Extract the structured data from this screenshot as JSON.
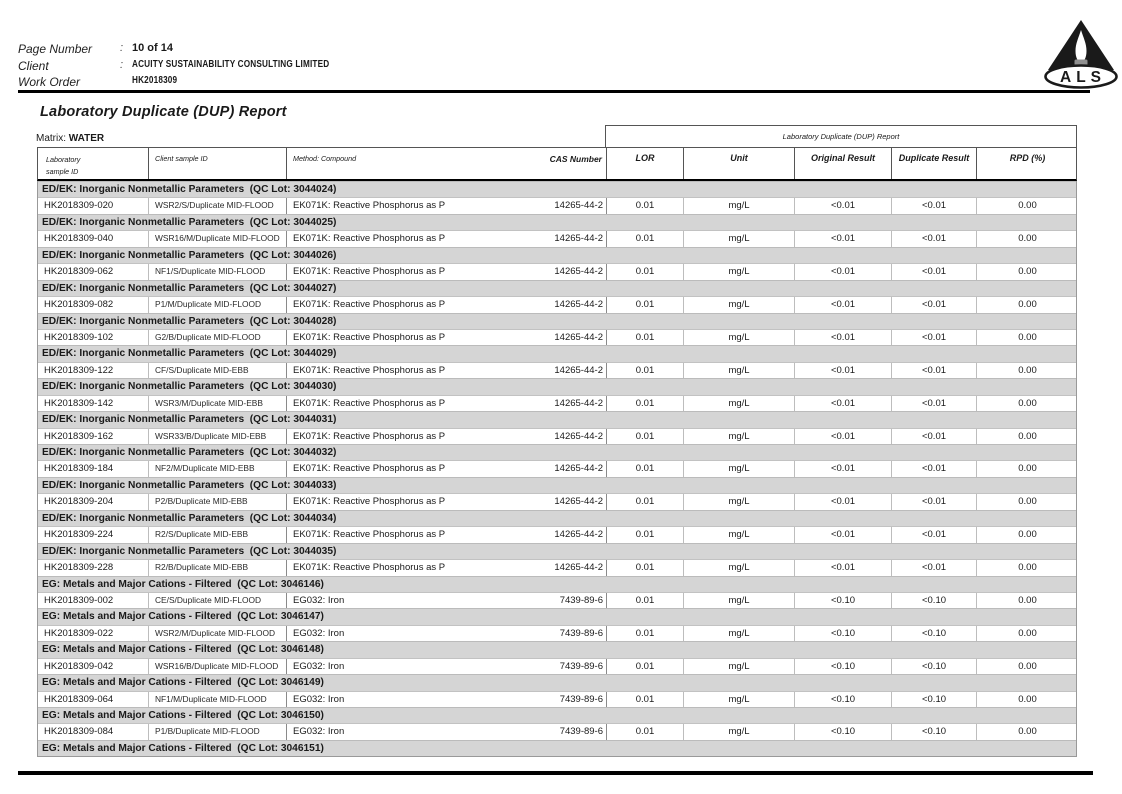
{
  "header": {
    "rows": [
      {
        "label": "Page Number",
        "sep": ":",
        "value": "10 of 14"
      },
      {
        "label": "Client",
        "sep": ":",
        "value": "ACUITY SUSTAINABILITY CONSULTING LIMITED"
      },
      {
        "label": "Work Order",
        "sep": "",
        "value": "HK2018309"
      }
    ]
  },
  "logo": {
    "text": "ALS"
  },
  "title": "Laboratory Duplicate (DUP) Report",
  "matrix": {
    "label": "Matrix:",
    "value": "WATER"
  },
  "table": {
    "group_header": "Laboratory Duplicate (DUP) Report",
    "columns": {
      "laboratory_sample_id_line1": "Laboratory",
      "laboratory_sample_id_line2": "sample ID",
      "client_sample_id": "Client sample ID",
      "method_compound": "Method: Compound",
      "cas_number": "CAS Number",
      "lor": "LOR",
      "unit": "Unit",
      "original_result": "Original Result",
      "duplicate_result": "Duplicate Result",
      "rpd": "RPD (%)"
    },
    "sections": [
      {
        "title": "ED/EK: Inorganic Nonmetallic Parameters  (QC Lot: 3044024)",
        "row": {
          "lab_id": "HK2018309-020",
          "client_id": "WSR2/S/Duplicate MID-FLOOD",
          "method": "EK071K: Reactive Phosphorus as P",
          "cas": "14265-44-2",
          "lor": "0.01",
          "unit": "mg/L",
          "original": "<0.01",
          "duplicate": "<0.01",
          "rpd": "0.00"
        }
      },
      {
        "title": "ED/EK: Inorganic Nonmetallic Parameters  (QC Lot: 3044025)",
        "row": {
          "lab_id": "HK2018309-040",
          "client_id": "WSR16/M/Duplicate MID-FLOOD",
          "method": "EK071K: Reactive Phosphorus as P",
          "cas": "14265-44-2",
          "lor": "0.01",
          "unit": "mg/L",
          "original": "<0.01",
          "duplicate": "<0.01",
          "rpd": "0.00"
        }
      },
      {
        "title": "ED/EK: Inorganic Nonmetallic Parameters  (QC Lot: 3044026)",
        "row": {
          "lab_id": "HK2018309-062",
          "client_id": "NF1/S/Duplicate MID-FLOOD",
          "method": "EK071K: Reactive Phosphorus as P",
          "cas": "14265-44-2",
          "lor": "0.01",
          "unit": "mg/L",
          "original": "<0.01",
          "duplicate": "<0.01",
          "rpd": "0.00"
        }
      },
      {
        "title": "ED/EK: Inorganic Nonmetallic Parameters  (QC Lot: 3044027)",
        "row": {
          "lab_id": "HK2018309-082",
          "client_id": "P1/M/Duplicate MID-FLOOD",
          "method": "EK071K: Reactive Phosphorus as P",
          "cas": "14265-44-2",
          "lor": "0.01",
          "unit": "mg/L",
          "original": "<0.01",
          "duplicate": "<0.01",
          "rpd": "0.00"
        }
      },
      {
        "title": "ED/EK: Inorganic Nonmetallic Parameters  (QC Lot: 3044028)",
        "row": {
          "lab_id": "HK2018309-102",
          "client_id": "G2/B/Duplicate MID-FLOOD",
          "method": "EK071K: Reactive Phosphorus as P",
          "cas": "14265-44-2",
          "lor": "0.01",
          "unit": "mg/L",
          "original": "<0.01",
          "duplicate": "<0.01",
          "rpd": "0.00"
        }
      },
      {
        "title": "ED/EK: Inorganic Nonmetallic Parameters  (QC Lot: 3044029)",
        "row": {
          "lab_id": "HK2018309-122",
          "client_id": "CF/S/Duplicate MID-EBB",
          "method": "EK071K: Reactive Phosphorus as P",
          "cas": "14265-44-2",
          "lor": "0.01",
          "unit": "mg/L",
          "original": "<0.01",
          "duplicate": "<0.01",
          "rpd": "0.00"
        }
      },
      {
        "title": "ED/EK: Inorganic Nonmetallic Parameters  (QC Lot: 3044030)",
        "row": {
          "lab_id": "HK2018309-142",
          "client_id": "WSR3/M/Duplicate MID-EBB",
          "method": "EK071K: Reactive Phosphorus as P",
          "cas": "14265-44-2",
          "lor": "0.01",
          "unit": "mg/L",
          "original": "<0.01",
          "duplicate": "<0.01",
          "rpd": "0.00"
        }
      },
      {
        "title": "ED/EK: Inorganic Nonmetallic Parameters  (QC Lot: 3044031)",
        "row": {
          "lab_id": "HK2018309-162",
          "client_id": "WSR33/B/Duplicate MID-EBB",
          "method": "EK071K: Reactive Phosphorus as P",
          "cas": "14265-44-2",
          "lor": "0.01",
          "unit": "mg/L",
          "original": "<0.01",
          "duplicate": "<0.01",
          "rpd": "0.00"
        }
      },
      {
        "title": "ED/EK: Inorganic Nonmetallic Parameters  (QC Lot: 3044032)",
        "row": {
          "lab_id": "HK2018309-184",
          "client_id": "NF2/M/Duplicate MID-EBB",
          "method": "EK071K: Reactive Phosphorus as P",
          "cas": "14265-44-2",
          "lor": "0.01",
          "unit": "mg/L",
          "original": "<0.01",
          "duplicate": "<0.01",
          "rpd": "0.00"
        }
      },
      {
        "title": "ED/EK: Inorganic Nonmetallic Parameters  (QC Lot: 3044033)",
        "row": {
          "lab_id": "HK2018309-204",
          "client_id": "P2/B/Duplicate MID-EBB",
          "method": "EK071K: Reactive Phosphorus as P",
          "cas": "14265-44-2",
          "lor": "0.01",
          "unit": "mg/L",
          "original": "<0.01",
          "duplicate": "<0.01",
          "rpd": "0.00"
        }
      },
      {
        "title": "ED/EK: Inorganic Nonmetallic Parameters  (QC Lot: 3044034)",
        "row": {
          "lab_id": "HK2018309-224",
          "client_id": "R2/S/Duplicate MID-EBB",
          "method": "EK071K: Reactive Phosphorus as P",
          "cas": "14265-44-2",
          "lor": "0.01",
          "unit": "mg/L",
          "original": "<0.01",
          "duplicate": "<0.01",
          "rpd": "0.00"
        }
      },
      {
        "title": "ED/EK: Inorganic Nonmetallic Parameters  (QC Lot: 3044035)",
        "row": {
          "lab_id": "HK2018309-228",
          "client_id": "R2/B/Duplicate MID-EBB",
          "method": "EK071K: Reactive Phosphorus as P",
          "cas": "14265-44-2",
          "lor": "0.01",
          "unit": "mg/L",
          "original": "<0.01",
          "duplicate": "<0.01",
          "rpd": "0.00"
        }
      },
      {
        "title": "EG: Metals and Major Cations - Filtered  (QC Lot: 3046146)",
        "row": {
          "lab_id": "HK2018309-002",
          "client_id": "CE/S/Duplicate MID-FLOOD",
          "method": "EG032: Iron",
          "cas": "7439-89-6",
          "lor": "0.01",
          "unit": "mg/L",
          "original": "<0.10",
          "duplicate": "<0.10",
          "rpd": "0.00"
        }
      },
      {
        "title": "EG: Metals and Major Cations - Filtered  (QC Lot: 3046147)",
        "row": {
          "lab_id": "HK2018309-022",
          "client_id": "WSR2/M/Duplicate MID-FLOOD",
          "method": "EG032: Iron",
          "cas": "7439-89-6",
          "lor": "0.01",
          "unit": "mg/L",
          "original": "<0.10",
          "duplicate": "<0.10",
          "rpd": "0.00"
        }
      },
      {
        "title": "EG: Metals and Major Cations - Filtered  (QC Lot: 3046148)",
        "row": {
          "lab_id": "HK2018309-042",
          "client_id": "WSR16/B/Duplicate MID-FLOOD",
          "method": "EG032: Iron",
          "cas": "7439-89-6",
          "lor": "0.01",
          "unit": "mg/L",
          "original": "<0.10",
          "duplicate": "<0.10",
          "rpd": "0.00"
        }
      },
      {
        "title": "EG: Metals and Major Cations - Filtered  (QC Lot: 3046149)",
        "row": {
          "lab_id": "HK2018309-064",
          "client_id": "NF1/M/Duplicate MID-FLOOD",
          "method": "EG032: Iron",
          "cas": "7439-89-6",
          "lor": "0.01",
          "unit": "mg/L",
          "original": "<0.10",
          "duplicate": "<0.10",
          "rpd": "0.00"
        }
      },
      {
        "title": "EG: Metals and Major Cations - Filtered  (QC Lot: 3046150)",
        "row": {
          "lab_id": "HK2018309-084",
          "client_id": "P1/B/Duplicate MID-FLOOD",
          "method": "EG032: Iron",
          "cas": "7439-89-6",
          "lor": "0.01",
          "unit": "mg/L",
          "original": "<0.10",
          "duplicate": "<0.10",
          "rpd": "0.00"
        }
      },
      {
        "title": "EG: Metals and Major Cations - Filtered  (QC Lot: 3046151)",
        "row": null
      }
    ]
  }
}
